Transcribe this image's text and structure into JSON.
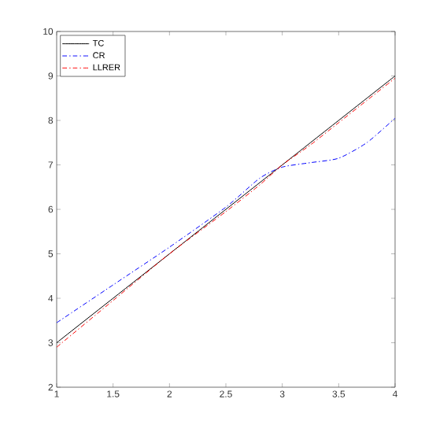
{
  "chart_data": {
    "type": "line",
    "x": [
      1,
      1.5,
      2,
      2.5,
      2.8,
      3,
      3.25,
      3.5,
      3.75,
      4
    ],
    "series": [
      {
        "name": "TC",
        "color": "#000000",
        "line_style": "solid",
        "values": [
          3,
          4,
          5,
          6,
          6.6,
          7,
          7.5,
          8,
          8.5,
          9
        ]
      },
      {
        "name": "CR",
        "color": "#0000ff",
        "line_style": "dashdot",
        "values": [
          3.45,
          4.3,
          5.15,
          6.05,
          6.7,
          6.95,
          7.05,
          7.15,
          7.5,
          8.05
        ]
      },
      {
        "name": "LLRER",
        "color": "#ff0000",
        "line_style": "dashdot",
        "values": [
          2.9,
          3.95,
          5,
          5.95,
          6.55,
          7,
          7.45,
          7.95,
          8.45,
          8.95
        ]
      }
    ],
    "xlim": [
      1,
      4
    ],
    "ylim": [
      2,
      10
    ],
    "xticks": [
      1,
      1.5,
      2,
      2.5,
      3,
      3.5,
      4
    ],
    "yticks": [
      2,
      3,
      4,
      5,
      6,
      7,
      8,
      9,
      10
    ],
    "legend": "top left",
    "marker": "none",
    "grid": false
  }
}
